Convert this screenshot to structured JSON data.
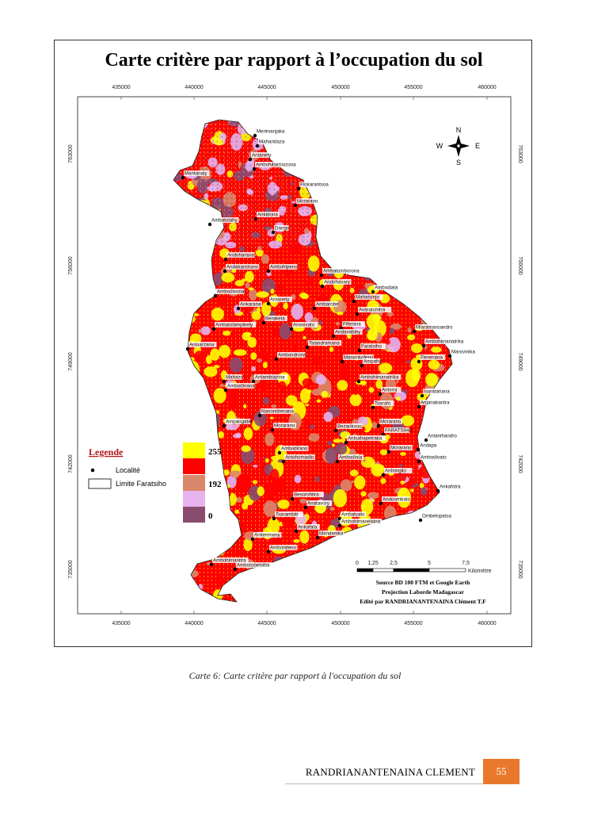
{
  "title": "Carte critère par rapport à l’occupation du sol",
  "x_ticks": [
    "435000",
    "440000",
    "445000",
    "450000",
    "455000",
    "460000"
  ],
  "y_ticks": [
    "763000",
    "756000",
    "749000",
    "742000",
    "735000"
  ],
  "north_arrow": {
    "n": "N",
    "s": "S",
    "e": "E",
    "w": "W"
  },
  "legend": {
    "title": "Legende",
    "locality_label": "Localité",
    "boundary_label": "Limite Faratsiho",
    "ramp_labels": [
      "255",
      "192",
      "0"
    ],
    "ramp_colors": [
      "#ffff00",
      "#ff0000",
      "#d9876a",
      "#e6b3ee",
      "#8a4c6e"
    ]
  },
  "scale_bar": {
    "labels": [
      "0",
      "1,25",
      "2,5",
      "5",
      "7,5"
    ],
    "unit": "Kilomètre"
  },
  "credits": [
    "Source BD 100 FTM et Google Earth",
    "Projection Laborde Madagascar",
    "Edité par RANDRIANANTENAINA Clément T.F"
  ],
  "localities": [
    "Merimanjaka",
    "Maharidaza",
    "Antanety",
    "Ambohitsimiozona",
    "Mantanaly",
    "Fiokarantsoa",
    "Morarano",
    "Ambatolahy",
    "Ankidona",
    "Dango",
    "Andoharana",
    "Andakandrano",
    "Ambohipeno",
    "Ambatomborona",
    "Andohavary",
    "Ambodiala",
    "Ambodivona",
    "Antanety",
    "Ankarana",
    "Ambarobe",
    "Mahatsinjo",
    "Avaratohitra",
    "Ambatolampikely",
    "Beraketa",
    "Anosivato",
    "Fiferana",
    "Andavabiby",
    "Miaramasoandro",
    "Antsarzana",
    "Tsiandramana",
    "Faratsiho",
    "Ambohimanatrika",
    "Ambondrona",
    "Manankofeno",
    "Ampahy",
    "Fierenana",
    "Marovinika",
    "Mahazo",
    "Antambiazina",
    "Ambodinana",
    "Ambohimanatrika",
    "Antsira",
    "Isoratanana",
    "Tsarafo",
    "Anjanakantra",
    "Nanondrenana",
    "Ampangabe",
    "Morarano",
    "Bezankoso",
    "Morarano",
    "FARATSIHO",
    "Antanihandro",
    "Antsahapetraka",
    "Andapa",
    "Ambodirano",
    "Morarano",
    "Antohomadio",
    "Ambodiala",
    "Ambodivato",
    "Antsingilo",
    "Ankafotra",
    "Besorohitra",
    "Anatavory",
    "Andoombato",
    "Ambatvato",
    "Ombelopatsa",
    "Tsarambitr",
    "Ambohimanelsina",
    "Ankafafa",
    "Ankerimeny",
    "Mandenika",
    "Ambolafeno",
    "Ambohimanitra",
    "Ambotobetsiba"
  ],
  "caption": "Carte 6: Carte critère par rapport à l'occupation du sol",
  "footer": {
    "author": "RANDRIANANTENAINA CLEMENT",
    "page": "55"
  }
}
